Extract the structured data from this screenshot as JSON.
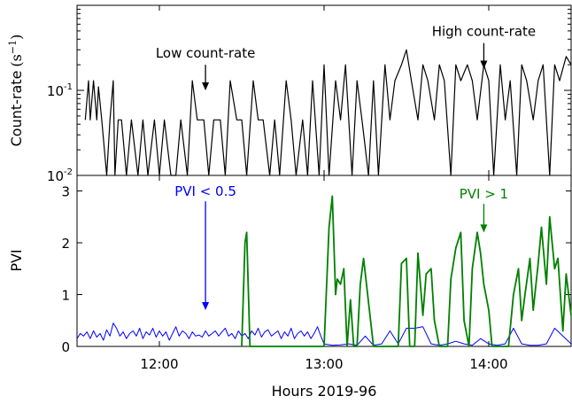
{
  "chart_data": [
    {
      "type": "line",
      "panel": "top",
      "ylabel": "Count-rate",
      "ylabel_unit": "(s",
      "ylabel_unit_sup": "−1",
      "ylabel_unit_close": ")",
      "yscale": "log",
      "ylim": [
        0.01,
        1.0
      ],
      "ytick_labels": [
        {
          "value": 0.1,
          "base": "10",
          "exp": "-1"
        },
        {
          "value": 0.01,
          "base": "10",
          "exp": "-2"
        }
      ],
      "annotations": [
        {
          "text": "Low count-rate",
          "arrow_x": 12.28,
          "arrow_from_y": 0.2,
          "arrow_to_y": 0.1
        },
        {
          "text": "High count-rate",
          "arrow_x": 13.97,
          "arrow_from_y": 0.36,
          "arrow_to_y": 0.18
        }
      ],
      "series": [
        {
          "color": "#000000",
          "x": [
            11.55,
            11.57,
            11.58,
            11.6,
            11.62,
            11.63,
            11.65,
            11.68,
            11.7,
            11.72,
            11.73,
            11.75,
            11.77,
            11.8,
            11.83,
            11.87,
            11.9,
            11.93,
            11.97,
            12.0,
            12.03,
            12.07,
            12.1,
            12.13,
            12.17,
            12.2,
            12.23,
            12.27,
            12.3,
            12.33,
            12.37,
            12.4,
            12.43,
            12.47,
            12.5,
            12.53,
            12.57,
            12.6,
            12.63,
            12.67,
            12.7,
            12.73,
            12.77,
            12.8,
            12.83,
            12.87,
            12.9,
            12.93,
            12.97,
            13.0,
            13.03,
            13.07,
            13.1,
            13.13,
            13.17,
            13.2,
            13.23,
            13.27,
            13.3,
            13.33,
            13.37,
            13.4,
            13.43,
            13.47,
            13.5,
            13.53,
            13.57,
            13.6,
            13.63,
            13.67,
            13.7,
            13.73,
            13.77,
            13.8,
            13.83,
            13.87,
            13.9,
            13.93,
            13.97,
            14.0,
            14.03,
            14.07,
            14.1,
            14.13,
            14.17,
            14.2,
            14.23,
            14.27,
            14.3,
            14.33,
            14.37,
            14.4,
            14.43,
            14.47,
            14.5
          ],
          "y": [
            0.045,
            0.13,
            0.045,
            0.13,
            0.045,
            0.11,
            0.045,
            0.01,
            0.045,
            0.13,
            0.01,
            0.045,
            0.045,
            0.01,
            0.045,
            0.01,
            0.045,
            0.01,
            0.045,
            0.01,
            0.045,
            0.01,
            0.01,
            0.045,
            0.01,
            0.13,
            0.045,
            0.045,
            0.01,
            0.045,
            0.045,
            0.01,
            0.13,
            0.045,
            0.045,
            0.01,
            0.13,
            0.045,
            0.045,
            0.01,
            0.045,
            0.01,
            0.13,
            0.045,
            0.01,
            0.045,
            0.01,
            0.13,
            0.01,
            0.2,
            0.01,
            0.13,
            0.045,
            0.2,
            0.01,
            0.13,
            0.045,
            0.01,
            0.13,
            0.01,
            0.2,
            0.045,
            0.13,
            0.2,
            0.3,
            0.13,
            0.045,
            0.2,
            0.13,
            0.045,
            0.2,
            0.13,
            0.01,
            0.2,
            0.13,
            0.2,
            0.13,
            0.045,
            0.2,
            0.13,
            0.01,
            0.2,
            0.045,
            0.13,
            0.01,
            0.2,
            0.13,
            0.045,
            0.13,
            0.2,
            0.01,
            0.2,
            0.13,
            0.25,
            0.2
          ]
        }
      ]
    },
    {
      "type": "line",
      "panel": "bottom",
      "ylabel": "PVI",
      "xlabel": "Hours 2019-96",
      "ylim": [
        0,
        3.3
      ],
      "yticks": [
        0,
        1,
        2,
        3
      ],
      "xlim": [
        11.5,
        14.5
      ],
      "xticks": [
        12,
        13,
        14
      ],
      "xtick_labels": [
        "12:00",
        "13:00",
        "14:00"
      ],
      "annotations": [
        {
          "text": "PVI < 0.5",
          "color": "#0000ff",
          "arrow_x": 12.28,
          "arrow_from_y": 2.8,
          "arrow_to_y": 0.7
        },
        {
          "text": "PVI > 1",
          "color": "#008000",
          "arrow_x": 13.97,
          "arrow_from_y": 2.75,
          "arrow_to_y": 2.2
        }
      ],
      "series": [
        {
          "color": "#0000ff",
          "x": [
            11.5,
            11.52,
            11.54,
            11.56,
            11.58,
            11.6,
            11.62,
            11.64,
            11.66,
            11.68,
            11.7,
            11.72,
            11.74,
            11.76,
            11.78,
            11.8,
            11.82,
            11.84,
            11.86,
            11.88,
            11.9,
            11.92,
            11.94,
            11.96,
            11.98,
            12.0,
            12.02,
            12.04,
            12.06,
            12.08,
            12.1,
            12.12,
            12.14,
            12.16,
            12.18,
            12.2,
            12.22,
            12.24,
            12.26,
            12.28,
            12.3,
            12.32,
            12.34,
            12.36,
            12.38,
            12.4,
            12.42,
            12.44,
            12.46,
            12.48,
            12.5,
            12.52,
            12.54,
            12.56,
            12.58,
            12.6,
            12.62,
            12.64,
            12.66,
            12.68,
            12.7,
            12.72,
            12.74,
            12.76,
            12.78,
            12.8,
            12.82,
            12.84,
            12.86,
            12.88,
            12.9,
            12.92,
            12.94,
            12.96,
            12.98,
            13.0,
            13.05,
            13.1,
            13.15,
            13.2,
            13.25,
            13.3,
            13.35,
            13.4,
            13.45,
            13.5,
            13.55,
            13.6,
            13.65,
            13.7,
            13.75,
            13.8,
            13.85,
            13.9,
            13.95,
            14.0,
            14.05,
            14.1,
            14.15,
            14.2,
            14.25,
            14.3,
            14.35,
            14.4,
            14.45,
            14.5
          ],
          "y": [
            0.15,
            0.25,
            0.2,
            0.28,
            0.15,
            0.3,
            0.18,
            0.25,
            0.12,
            0.32,
            0.2,
            0.45,
            0.35,
            0.2,
            0.28,
            0.15,
            0.25,
            0.3,
            0.2,
            0.35,
            0.15,
            0.28,
            0.22,
            0.35,
            0.18,
            0.3,
            0.2,
            0.28,
            0.12,
            0.25,
            0.38,
            0.2,
            0.3,
            0.25,
            0.15,
            0.28,
            0.2,
            0.22,
            0.18,
            0.3,
            0.2,
            0.25,
            0.3,
            0.2,
            0.28,
            0.35,
            0.2,
            0.25,
            0.15,
            0.3,
            0.2,
            0.25,
            0.15,
            0.3,
            0.22,
            0.35,
            0.18,
            0.28,
            0.32,
            0.2,
            0.25,
            0.3,
            0.15,
            0.28,
            0.2,
            0.35,
            0.15,
            0.25,
            0.3,
            0.2,
            0.28,
            0.15,
            0.25,
            0.38,
            0.2,
            0.05,
            0.02,
            0.03,
            0.05,
            0.02,
            0.2,
            0.02,
            0.05,
            0.3,
            0.05,
            0.35,
            0.35,
            0.38,
            0.05,
            0.02,
            0.05,
            0.1,
            0.05,
            0.02,
            0.15,
            0.05,
            0.02,
            0.05,
            0.35,
            0.05,
            0.02,
            0.02,
            0.05,
            0.35,
            0.2,
            0.05
          ]
        },
        {
          "color": "#008000",
          "x": [
            12.5,
            12.52,
            12.53,
            12.55,
            12.6,
            13.0,
            13.03,
            13.05,
            13.07,
            13.08,
            13.1,
            13.12,
            13.14,
            13.16,
            13.18,
            13.2,
            13.22,
            13.24,
            13.3,
            13.32,
            13.35,
            13.37,
            13.4,
            13.45,
            13.47,
            13.5,
            13.52,
            13.55,
            13.57,
            13.6,
            13.62,
            13.65,
            13.67,
            13.7,
            13.75,
            13.77,
            13.8,
            13.83,
            13.85,
            13.88,
            13.9,
            13.93,
            13.95,
            13.97,
            14.0,
            14.02,
            14.05,
            14.08,
            14.1,
            14.12,
            14.15,
            14.18,
            14.2,
            14.22,
            14.25,
            14.27,
            14.3,
            14.32,
            14.35,
            14.37,
            14.4,
            14.42,
            14.45,
            14.47,
            14.5
          ],
          "y": [
            0,
            2.0,
            2.2,
            0,
            0,
            0,
            2.3,
            2.9,
            1.0,
            1.3,
            1.2,
            1.5,
            0,
            0.9,
            0,
            0,
            1.2,
            1.7,
            0,
            0,
            0,
            0,
            0,
            0,
            1.6,
            1.7,
            0,
            0,
            1.8,
            0.6,
            1.4,
            1.5,
            0.5,
            0,
            0,
            1.3,
            1.9,
            2.2,
            0.5,
            0,
            1.5,
            2.2,
            1.8,
            1.2,
            0.7,
            0,
            0,
            0,
            0,
            0,
            1.0,
            1.5,
            0.5,
            1.0,
            1.7,
            0.7,
            1.6,
            2.3,
            1.2,
            2.5,
            1.5,
            1.7,
            0.3,
            1.4,
            0.6
          ]
        }
      ]
    }
  ]
}
